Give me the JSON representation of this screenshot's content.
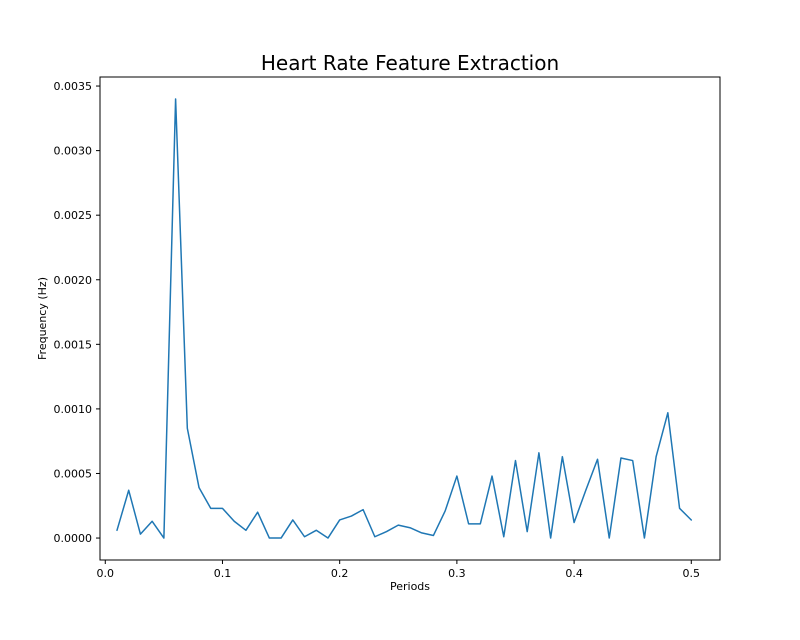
{
  "chart_data": {
    "type": "line",
    "title": "Heart Rate Feature Extraction",
    "xlabel": "Periods",
    "ylabel": "Frequency (Hz)",
    "xlim": [
      -0.0045,
      0.5245
    ],
    "ylim": [
      -0.00017,
      0.00357
    ],
    "x_ticks": [
      0.0,
      0.1,
      0.2,
      0.3,
      0.4,
      0.5
    ],
    "x_tick_labels": [
      "0.0",
      "0.1",
      "0.2",
      "0.3",
      "0.4",
      "0.5"
    ],
    "y_ticks": [
      0.0,
      0.0005,
      0.001,
      0.0015,
      0.002,
      0.0025,
      0.003,
      0.0035
    ],
    "y_tick_labels": [
      "0.0000",
      "0.0005",
      "0.0010",
      "0.0015",
      "0.0020",
      "0.0025",
      "0.0030",
      "0.0035"
    ],
    "grid": false,
    "series": [
      {
        "color": "#1f77b4",
        "x": [
          0.01,
          0.02,
          0.03,
          0.04,
          0.05,
          0.06,
          0.07,
          0.08,
          0.09,
          0.1,
          0.11,
          0.12,
          0.13,
          0.14,
          0.15,
          0.16,
          0.17,
          0.18,
          0.19,
          0.2,
          0.21,
          0.22,
          0.23,
          0.24,
          0.25,
          0.26,
          0.27,
          0.28,
          0.29,
          0.3,
          0.31,
          0.32,
          0.33,
          0.34,
          0.35,
          0.36,
          0.37,
          0.38,
          0.39,
          0.4,
          0.41,
          0.42,
          0.43,
          0.44,
          0.45,
          0.46,
          0.47,
          0.48,
          0.49,
          0.5
        ],
        "y": [
          6e-05,
          0.00037,
          3e-05,
          0.00013,
          0.0,
          0.0034,
          0.00085,
          0.00039,
          0.00023,
          0.00023,
          0.00013,
          6e-05,
          0.0002,
          0.0,
          0.0,
          0.00014,
          1e-05,
          6e-05,
          0.0,
          0.00014,
          0.00017,
          0.00022,
          1e-05,
          5e-05,
          0.0001,
          8e-05,
          4e-05,
          2e-05,
          0.00021,
          0.00048,
          0.00011,
          0.00011,
          0.00048,
          1e-05,
          0.0006,
          5e-05,
          0.00066,
          0.0,
          0.00063,
          0.00012,
          0.00037,
          0.00061,
          0.0,
          0.00062,
          0.0006,
          0.0,
          0.00063,
          0.00097,
          0.00023,
          0.00014
        ]
      }
    ]
  }
}
